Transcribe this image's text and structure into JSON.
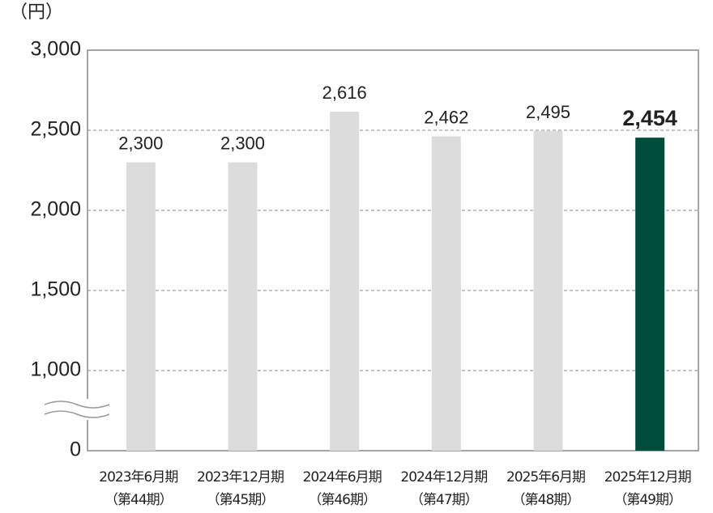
{
  "chart_data": {
    "type": "bar",
    "unit_label": "（円）",
    "categories": [
      "2023年6月期",
      "2023年12月期",
      "2024年6月期",
      "2024年12月期",
      "2025年6月期",
      "2025年12月期"
    ],
    "periods": [
      "（第44期）",
      "（第45期）",
      "（第46期）",
      "（第47期）",
      "（第48期）",
      "（第49期）"
    ],
    "values": [
      2300,
      2300,
      2616,
      2462,
      2495,
      2454
    ],
    "value_labels": [
      "2,300",
      "2,300",
      "2,616",
      "2,462",
      "2,495",
      "2,454"
    ],
    "colors": [
      "#dcdcdc",
      "#dcdcdc",
      "#dcdcdc",
      "#dcdcdc",
      "#dcdcdc",
      "#004d3c"
    ],
    "ylim": [
      0,
      3000
    ],
    "yticks": [
      0,
      {
        "value": 1000,
        "label": "1,000"
      },
      {
        "value": 1500,
        "label": "1,500"
      },
      {
        "value": 2000,
        "label": "2,000"
      },
      {
        "value": 2500,
        "label": "2,500"
      },
      {
        "value": 3000,
        "label": "3,000"
      }
    ],
    "broken_axis": true,
    "grid": true
  }
}
